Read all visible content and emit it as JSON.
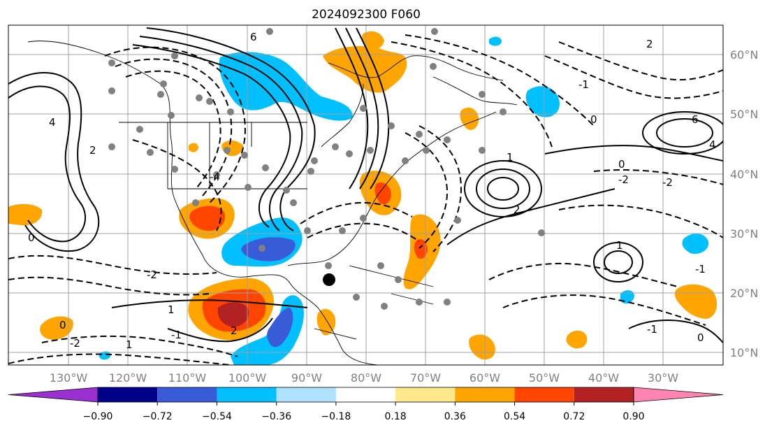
{
  "title": "2024092300 F060",
  "lon_ticks": [
    "130°W",
    "120°W",
    "110°W",
    "100°W",
    "90°W",
    "80°W",
    "70°W",
    "60°W",
    "50°W",
    "40°W",
    "30°W"
  ],
  "lat_ticks": [
    "60°N",
    "50°N",
    "40°N",
    "30°N",
    "20°N",
    "10°N"
  ],
  "colorbar": {
    "colors": [
      "#9b30d0",
      "#00008b",
      "#3a5bd9",
      "#00bfff",
      "#b0e0ff",
      "#ffffff",
      "#ffe98a",
      "#ffa500",
      "#ff4500",
      "#b22222",
      "#ff85b0"
    ],
    "labels": [
      "−0.90",
      "−0.72",
      "−0.54",
      "−0.36",
      "−0.18",
      "0.18",
      "0.36",
      "0.54",
      "0.72",
      "0.90"
    ]
  },
  "contour_labels": [
    "6",
    "4",
    "2",
    "0",
    "-2",
    "-4",
    "1",
    "-1",
    "2",
    "-2",
    "0",
    "1",
    "-1",
    "6",
    "4",
    "2",
    "0",
    "-2",
    "1",
    "2",
    "0",
    "-2",
    "-1",
    "0",
    "1",
    "-1"
  ],
  "storm_marker": "storm-center"
}
